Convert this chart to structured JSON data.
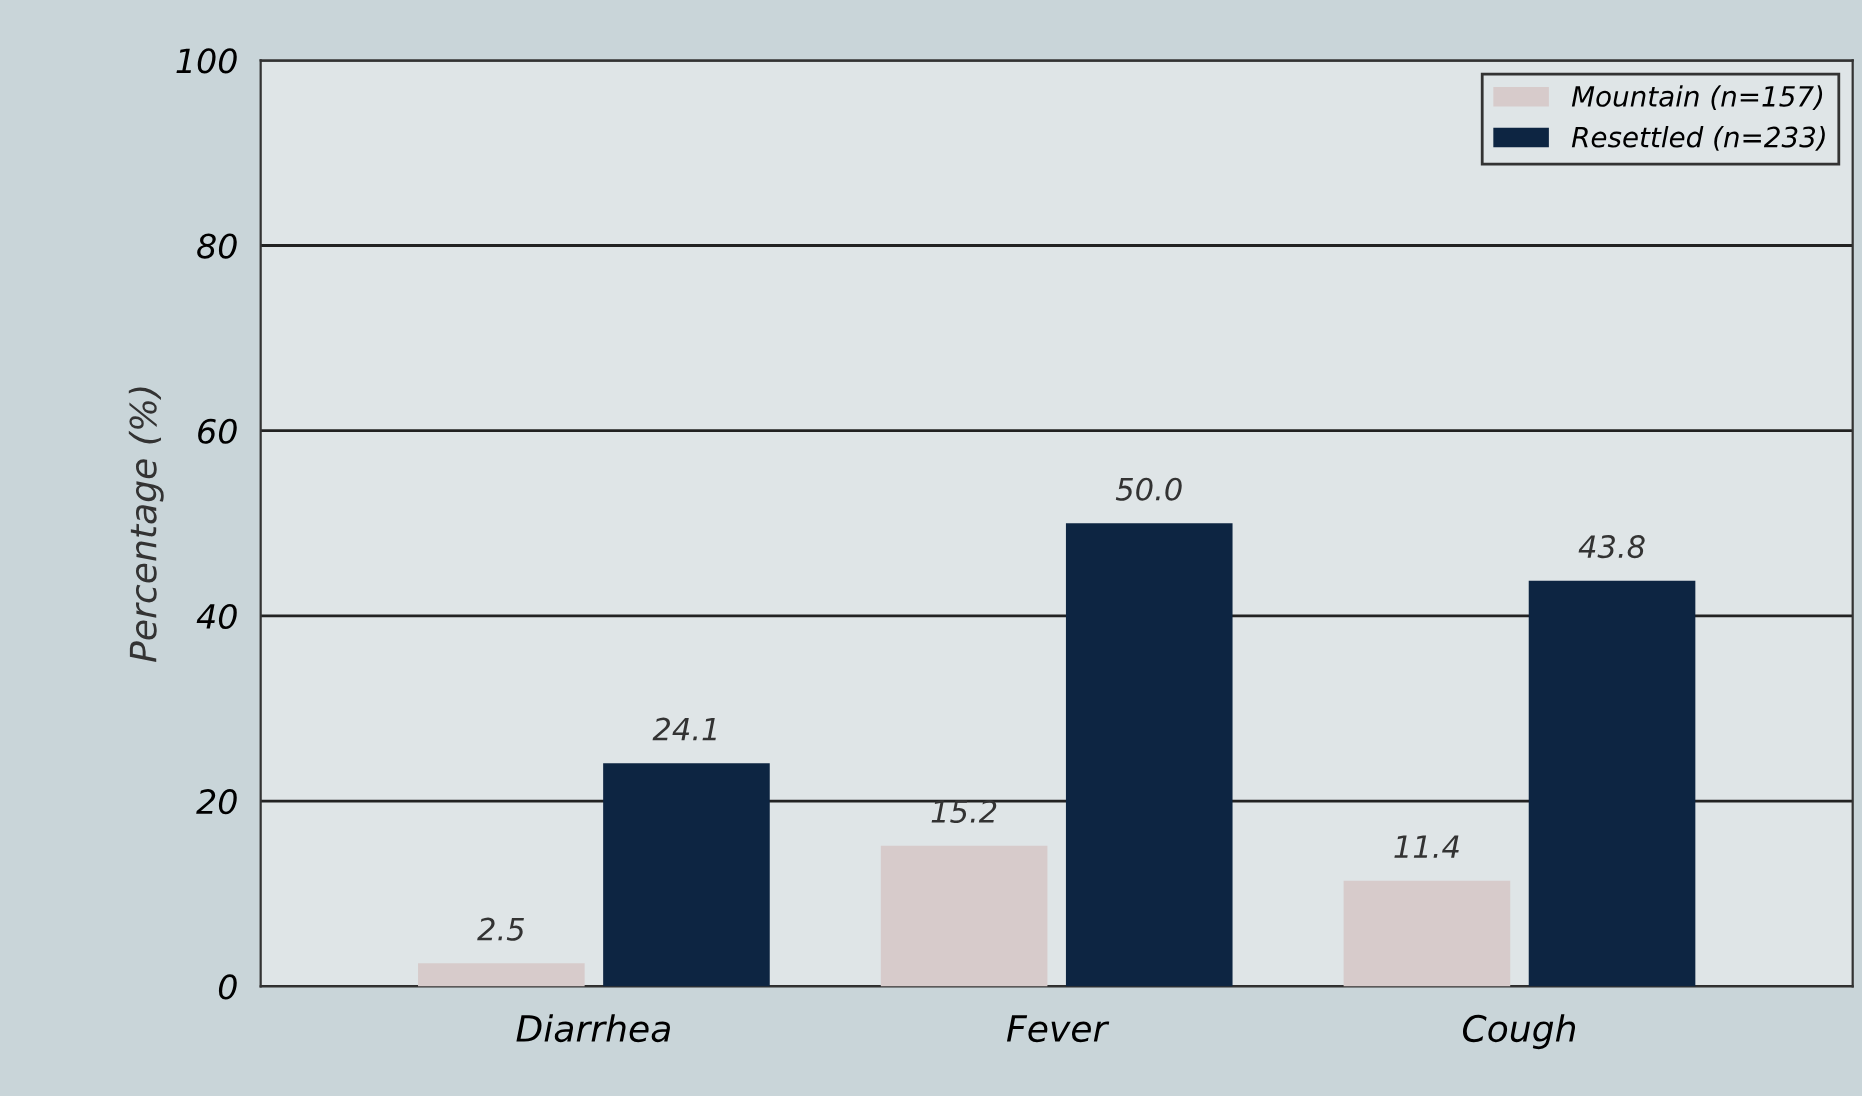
{
  "chart_data": {
    "type": "bar",
    "ylabel": "Percentage (%)",
    "categories": [
      "Diarrhea",
      "Fever",
      "Cough"
    ],
    "series": [
      {
        "name": "Mountain (n=157)",
        "color": "#d7cbcb",
        "values": [
          2.5,
          15.2,
          11.4
        ],
        "value_labels": [
          "2.5",
          "15.2",
          "11.4"
        ]
      },
      {
        "name": "Resettled (n=233)",
        "color": "#0d2542",
        "values": [
          24.1,
          50.0,
          43.8
        ],
        "value_labels": [
          "24.1",
          "50.0",
          "43.8"
        ]
      }
    ],
    "ylim": [
      0,
      100
    ],
    "yticks": [
      0,
      20,
      40,
      60,
      80,
      100
    ],
    "grid": "y",
    "legend": "top right"
  }
}
